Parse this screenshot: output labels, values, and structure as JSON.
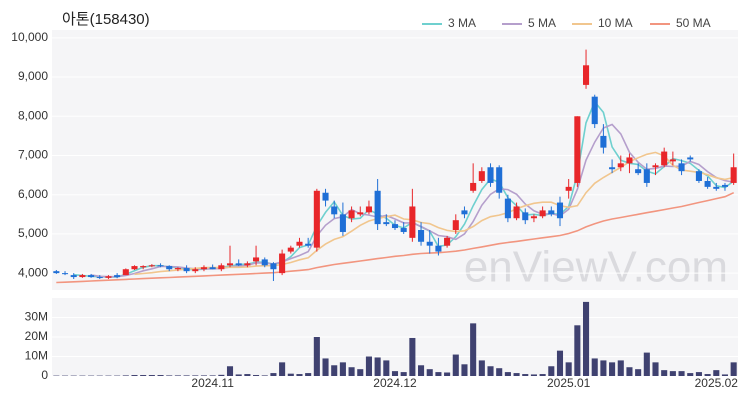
{
  "chart_data": {
    "type": "candlestick",
    "title": "아톤(158430)",
    "watermark": "enViewV.com",
    "up_color": "#e8262a",
    "down_color": "#1f6fd6",
    "volume_color": "#3f4170",
    "grid": true,
    "legend": "top-right",
    "categories": [
      null,
      null,
      null,
      null,
      null,
      null,
      null,
      null,
      null,
      null,
      null,
      null,
      null,
      null,
      null,
      null,
      null,
      null,
      "2024.11",
      null,
      null,
      null,
      null,
      null,
      null,
      null,
      null,
      null,
      null,
      null,
      null,
      null,
      null,
      null,
      null,
      null,
      null,
      null,
      null,
      "2024.12",
      null,
      null,
      null,
      null,
      null,
      null,
      null,
      null,
      null,
      null,
      null,
      null,
      null,
      null,
      null,
      null,
      null,
      null,
      null,
      "2025.01",
      null,
      null,
      null,
      null,
      null,
      null,
      null,
      null,
      null,
      null,
      null,
      null,
      null,
      null,
      null,
      null,
      "2025.02",
      null,
      null
    ],
    "open": [
      4050,
      4000,
      3950,
      3900,
      3950,
      3900,
      3880,
      3950,
      3950,
      4100,
      4150,
      4180,
      4200,
      4180,
      4100,
      4130,
      4050,
      4100,
      4150,
      4100,
      4200,
      4250,
      4200,
      4300,
      4350,
      4250,
      4000,
      4550,
      4700,
      4750,
      4650,
      6050,
      5700,
      5500,
      5400,
      5500,
      5550,
      6100,
      5300,
      5250,
      5150,
      4900,
      5100,
      4800,
      4700,
      4700,
      5100,
      5600,
      6100,
      6350,
      6700,
      6700,
      5900,
      5400,
      5550,
      5400,
      5450,
      5600,
      5800,
      6100,
      6300,
      8800,
      8500,
      7500,
      6700,
      6700,
      6800,
      6650,
      6650,
      6700,
      6750,
      6850,
      6800,
      6950,
      6600,
      6350,
      6200,
      6250,
      6300
    ],
    "high": [
      4080,
      4050,
      4000,
      3980,
      3980,
      3950,
      3950,
      4000,
      4120,
      4200,
      4200,
      4230,
      4250,
      4200,
      4150,
      4200,
      4150,
      4200,
      4220,
      4250,
      4700,
      4350,
      4300,
      4700,
      4400,
      4280,
      4600,
      4700,
      4900,
      4900,
      6150,
      6150,
      5850,
      5800,
      5700,
      5700,
      5850,
      6400,
      5500,
      5350,
      5300,
      6150,
      5300,
      5100,
      4900,
      4950,
      5500,
      5700,
      6800,
      6700,
      6800,
      6750,
      6000,
      5800,
      5650,
      5500,
      5700,
      5700,
      5950,
      6400,
      8000,
      9700,
      8550,
      7800,
      6900,
      7000,
      7050,
      6800,
      6800,
      6800,
      7200,
      7100,
      6900,
      7000,
      6650,
      6450,
      6300,
      6300,
      7050
    ],
    "low": [
      3980,
      3950,
      3850,
      3880,
      3880,
      3850,
      3850,
      3870,
      3950,
      4080,
      4100,
      4150,
      4150,
      4050,
      4050,
      4000,
      4000,
      4050,
      4100,
      4050,
      4150,
      4180,
      4150,
      4200,
      4150,
      3800,
      3950,
      4500,
      4650,
      4650,
      4550,
      5700,
      5400,
      4950,
      5300,
      5450,
      5500,
      5100,
      5200,
      5100,
      5000,
      4800,
      4700,
      4500,
      4450,
      4650,
      5000,
      5400,
      6050,
      6300,
      6200,
      5900,
      5300,
      5350,
      5250,
      5300,
      5400,
      5450,
      5200,
      5900,
      6200,
      8700,
      7700,
      7050,
      6550,
      6600,
      6550,
      6500,
      6200,
      6500,
      6700,
      6750,
      6500,
      6850,
      6300,
      6150,
      6100,
      6100,
      6250
    ],
    "close": [
      4000,
      3980,
      3900,
      3950,
      3900,
      3880,
      3920,
      3900,
      4100,
      4180,
      4180,
      4200,
      4180,
      4100,
      4130,
      4050,
      4100,
      4150,
      4100,
      4200,
      4250,
      4200,
      4250,
      4400,
      4200,
      4100,
      4500,
      4650,
      4800,
      4700,
      6100,
      5850,
      5500,
      5050,
      5600,
      5550,
      5700,
      5250,
      5250,
      5150,
      5050,
      5700,
      4800,
      4700,
      4550,
      4900,
      5350,
      5500,
      6300,
      6600,
      6300,
      6050,
      5400,
      5700,
      5350,
      5450,
      5600,
      5500,
      5400,
      6200,
      8000,
      9300,
      7800,
      7200,
      6650,
      6800,
      6950,
      6550,
      6300,
      6750,
      7100,
      6900,
      6600,
      6900,
      6350,
      6200,
      6150,
      6200,
      6700
    ],
    "volume": [
      200000,
      200000,
      200000,
      200000,
      200000,
      200000,
      200000,
      200000,
      300000,
      500000,
      500000,
      500000,
      500000,
      300000,
      300000,
      300000,
      300000,
      300000,
      300000,
      600000,
      5000000,
      800000,
      1000000,
      500000,
      300000,
      1500000,
      7000000,
      1200000,
      1000000,
      1500000,
      20000000,
      9000000,
      5500000,
      7000000,
      4500000,
      3500000,
      10000000,
      9500000,
      8000000,
      2500000,
      2000000,
      19500000,
      5500000,
      3500000,
      2000000,
      1800000,
      11000000,
      6000000,
      27000000,
      8000000,
      5000000,
      4000000,
      2000000,
      1500000,
      1000000,
      800000,
      1000000,
      5000000,
      13000000,
      7000000,
      26000000,
      38000000,
      9000000,
      8000000,
      7000000,
      8000000,
      4500000,
      3500000,
      12000000,
      7000000,
      3000000,
      2500000,
      2500000,
      1500000,
      2000000,
      1000000,
      3000000,
      800000,
      7000000
    ],
    "series": [
      {
        "name": "3 MA",
        "color": "#6fd0cf",
        "values": [
          null,
          null,
          3960,
          3940,
          3920,
          3910,
          3900,
          3900,
          3970,
          4060,
          4150,
          4190,
          4190,
          4160,
          4140,
          4090,
          4090,
          4100,
          4120,
          4150,
          4180,
          4220,
          4230,
          4280,
          4280,
          4230,
          4270,
          4420,
          4650,
          4720,
          5200,
          5550,
          5820,
          5470,
          5380,
          5400,
          5620,
          5500,
          5400,
          5220,
          5150,
          5300,
          5180,
          5070,
          4680,
          4720,
          4930,
          5250,
          5720,
          6130,
          6400,
          6320,
          5920,
          5720,
          5480,
          5500,
          5470,
          5520,
          5500,
          5700,
          6530,
          7830,
          8370,
          8100,
          7220,
          6880,
          6800,
          6770,
          6600,
          6530,
          6720,
          6920,
          6870,
          6800,
          6620,
          6480,
          6230,
          6180,
          6350
        ]
      },
      {
        "name": "5 MA",
        "color": "#b59fcc",
        "values": [
          null,
          null,
          null,
          null,
          3950,
          3920,
          3910,
          3910,
          3940,
          3990,
          4060,
          4110,
          4170,
          4170,
          4160,
          4130,
          4110,
          4110,
          4110,
          4120,
          4160,
          4180,
          4200,
          4260,
          4260,
          4230,
          4290,
          4370,
          4450,
          4550,
          4950,
          5220,
          5390,
          5440,
          5620,
          5510,
          5480,
          5430,
          5470,
          5380,
          5280,
          5280,
          5190,
          5080,
          4960,
          4930,
          4860,
          5000,
          5320,
          5730,
          6010,
          6150,
          6130,
          6010,
          5760,
          5590,
          5500,
          5520,
          5460,
          5630,
          6140,
          6880,
          7340,
          7700,
          7790,
          7550,
          7080,
          6830,
          6650,
          6670,
          6730,
          6720,
          6730,
          6850,
          6770,
          6590,
          6440,
          6360,
          6320
        ]
      },
      {
        "name": "10 MA",
        "color": "#f1c68e",
        "values": [
          null,
          null,
          null,
          null,
          null,
          null,
          null,
          null,
          null,
          3970,
          3990,
          4010,
          4040,
          4060,
          4080,
          4100,
          4120,
          4140,
          4140,
          4140,
          4150,
          4150,
          4160,
          4180,
          4190,
          4190,
          4220,
          4270,
          4340,
          4390,
          4580,
          4740,
          4860,
          4930,
          5070,
          5220,
          5330,
          5390,
          5440,
          5480,
          5380,
          5360,
          5290,
          5260,
          5160,
          5090,
          5060,
          5080,
          5190,
          5340,
          5440,
          5480,
          5540,
          5640,
          5720,
          5780,
          5810,
          5810,
          5720,
          5680,
          5720,
          6050,
          6290,
          6440,
          6570,
          6700,
          6840,
          6940,
          7030,
          7080,
          6990,
          6750,
          6630,
          6600,
          6570,
          6510,
          6430,
          6390,
          6440
        ]
      },
      {
        "name": "50 MA",
        "color": "#f2957f",
        "values": [
          3760,
          3770,
          3780,
          3790,
          3800,
          3810,
          3820,
          3830,
          3840,
          3850,
          3860,
          3870,
          3880,
          3890,
          3900,
          3910,
          3920,
          3930,
          3940,
          3950,
          3960,
          3970,
          3980,
          3990,
          4000,
          4010,
          4030,
          4050,
          4070,
          4090,
          4140,
          4180,
          4220,
          4250,
          4280,
          4310,
          4340,
          4370,
          4400,
          4430,
          4450,
          4480,
          4500,
          4510,
          4520,
          4540,
          4560,
          4590,
          4630,
          4670,
          4710,
          4750,
          4780,
          4810,
          4840,
          4870,
          4900,
          4930,
          4960,
          5010,
          5080,
          5180,
          5260,
          5330,
          5380,
          5420,
          5460,
          5500,
          5540,
          5580,
          5620,
          5660,
          5700,
          5750,
          5800,
          5850,
          5900,
          5950,
          6050
        ]
      }
    ],
    "ylim": [
      3570,
      10200
    ],
    "yticks": [
      {
        "value": 4000,
        "label": "4,000"
      },
      {
        "value": 5000,
        "label": "5,000"
      },
      {
        "value": 6000,
        "label": "6,000"
      },
      {
        "value": 7000,
        "label": "7,000"
      },
      {
        "value": 8000,
        "label": "8,000"
      },
      {
        "value": 9000,
        "label": "9,000"
      },
      {
        "value": 10000,
        "label": "10,000"
      }
    ],
    "volume_ylim": [
      0,
      40000000
    ],
    "volume_yticks": [
      0,
      {
        "value": 10000000,
        "label": "10M"
      },
      {
        "value": 20000000,
        "label": "20M"
      },
      {
        "value": 30000000,
        "label": "30M"
      }
    ]
  }
}
